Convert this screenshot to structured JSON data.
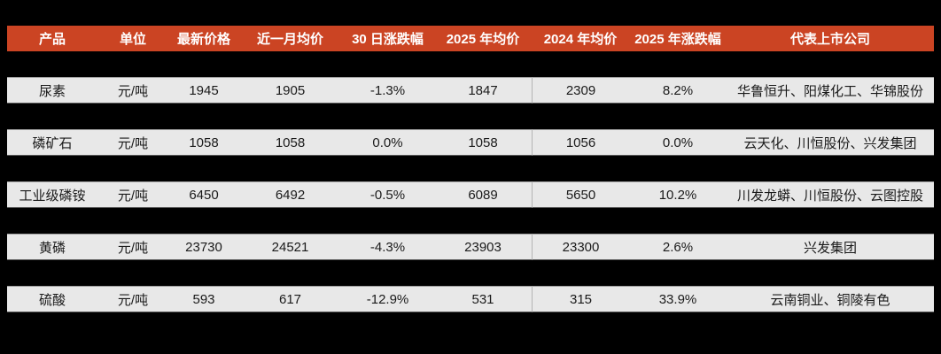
{
  "theme": {
    "page_background": "#000000",
    "header_background": "#cb4423",
    "header_text_color": "#ffffff",
    "row_background": "#e8e8e8",
    "row_text_color": "#1a1a1a"
  },
  "chart_data": {
    "type": "table",
    "title": "",
    "unit_note": "元/吨",
    "columns": [
      {
        "key": "product",
        "label": "产品"
      },
      {
        "key": "unit",
        "label": "单位"
      },
      {
        "key": "latest_price",
        "label": "最新价格"
      },
      {
        "key": "month_avg",
        "label": "近一月均价"
      },
      {
        "key": "change_30d",
        "label": "30 日涨跌幅"
      },
      {
        "key": "avg_2025",
        "label": "2025 年均价"
      },
      {
        "key": "avg_2024",
        "label": "2024 年均价"
      },
      {
        "key": "change_2025",
        "label": "2025 年涨跌幅"
      },
      {
        "key": "listed_companies",
        "label": "代表上市公司"
      }
    ],
    "rows": [
      {
        "product": "尿素",
        "unit": "元/吨",
        "latest_price": "1945",
        "month_avg": "1905",
        "change_30d": "-1.3%",
        "avg_2025": "1847",
        "avg_2024": "2309",
        "change_2025": "8.2%",
        "listed_companies": "华鲁恒升、阳煤化工、华锦股份"
      },
      {
        "product": "磷矿石",
        "unit": "元/吨",
        "latest_price": "1058",
        "month_avg": "1058",
        "change_30d": "0.0%",
        "avg_2025": "1058",
        "avg_2024": "1056",
        "change_2025": "0.0%",
        "listed_companies": "云天化、川恒股份、兴发集团"
      },
      {
        "product": "工业级磷铵",
        "unit": "元/吨",
        "latest_price": "6450",
        "month_avg": "6492",
        "change_30d": "-0.5%",
        "avg_2025": "6089",
        "avg_2024": "5650",
        "change_2025": "10.2%",
        "listed_companies": "川发龙蟒、川恒股份、云图控股"
      },
      {
        "product": "黄磷",
        "unit": "元/吨",
        "latest_price": "23730",
        "month_avg": "24521",
        "change_30d": "-4.3%",
        "avg_2025": "23903",
        "avg_2024": "23300",
        "change_2025": "2.6%",
        "listed_companies": "兴发集团"
      },
      {
        "product": "硫酸",
        "unit": "元/吨",
        "latest_price": "593",
        "month_avg": "617",
        "change_30d": "-12.9%",
        "avg_2025": "531",
        "avg_2024": "315",
        "change_2025": "33.9%",
        "listed_companies": "云南铜业、铜陵有色"
      }
    ]
  }
}
